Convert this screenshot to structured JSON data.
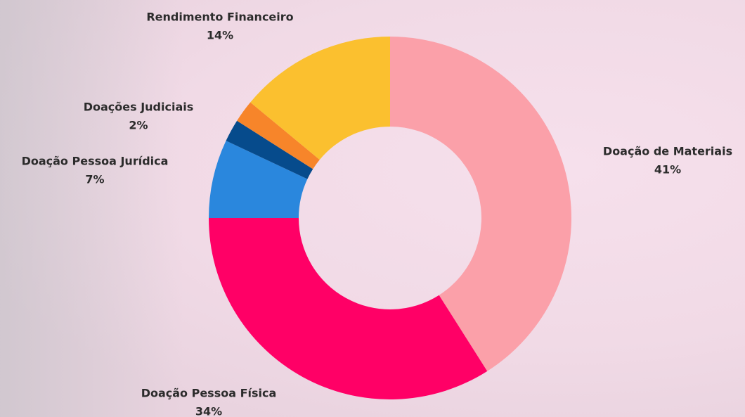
{
  "chart_data": {
    "type": "donut",
    "categories": [
      "Doação de Materiais",
      "Doação Pessoa Física",
      "Doação Pessoa Jurídica",
      null,
      "Doações Judiciais",
      "Rendimento Financeiro"
    ],
    "values": [
      41,
      34,
      7,
      2,
      2,
      14
    ],
    "value_labels": [
      "41%",
      "34%",
      "7%",
      null,
      "2%",
      "14%"
    ],
    "colors": [
      "#fba0a9",
      "#ff0066",
      "#2a87dd",
      "#064b8c",
      "#f7852a",
      "#fbc02f"
    ]
  }
}
